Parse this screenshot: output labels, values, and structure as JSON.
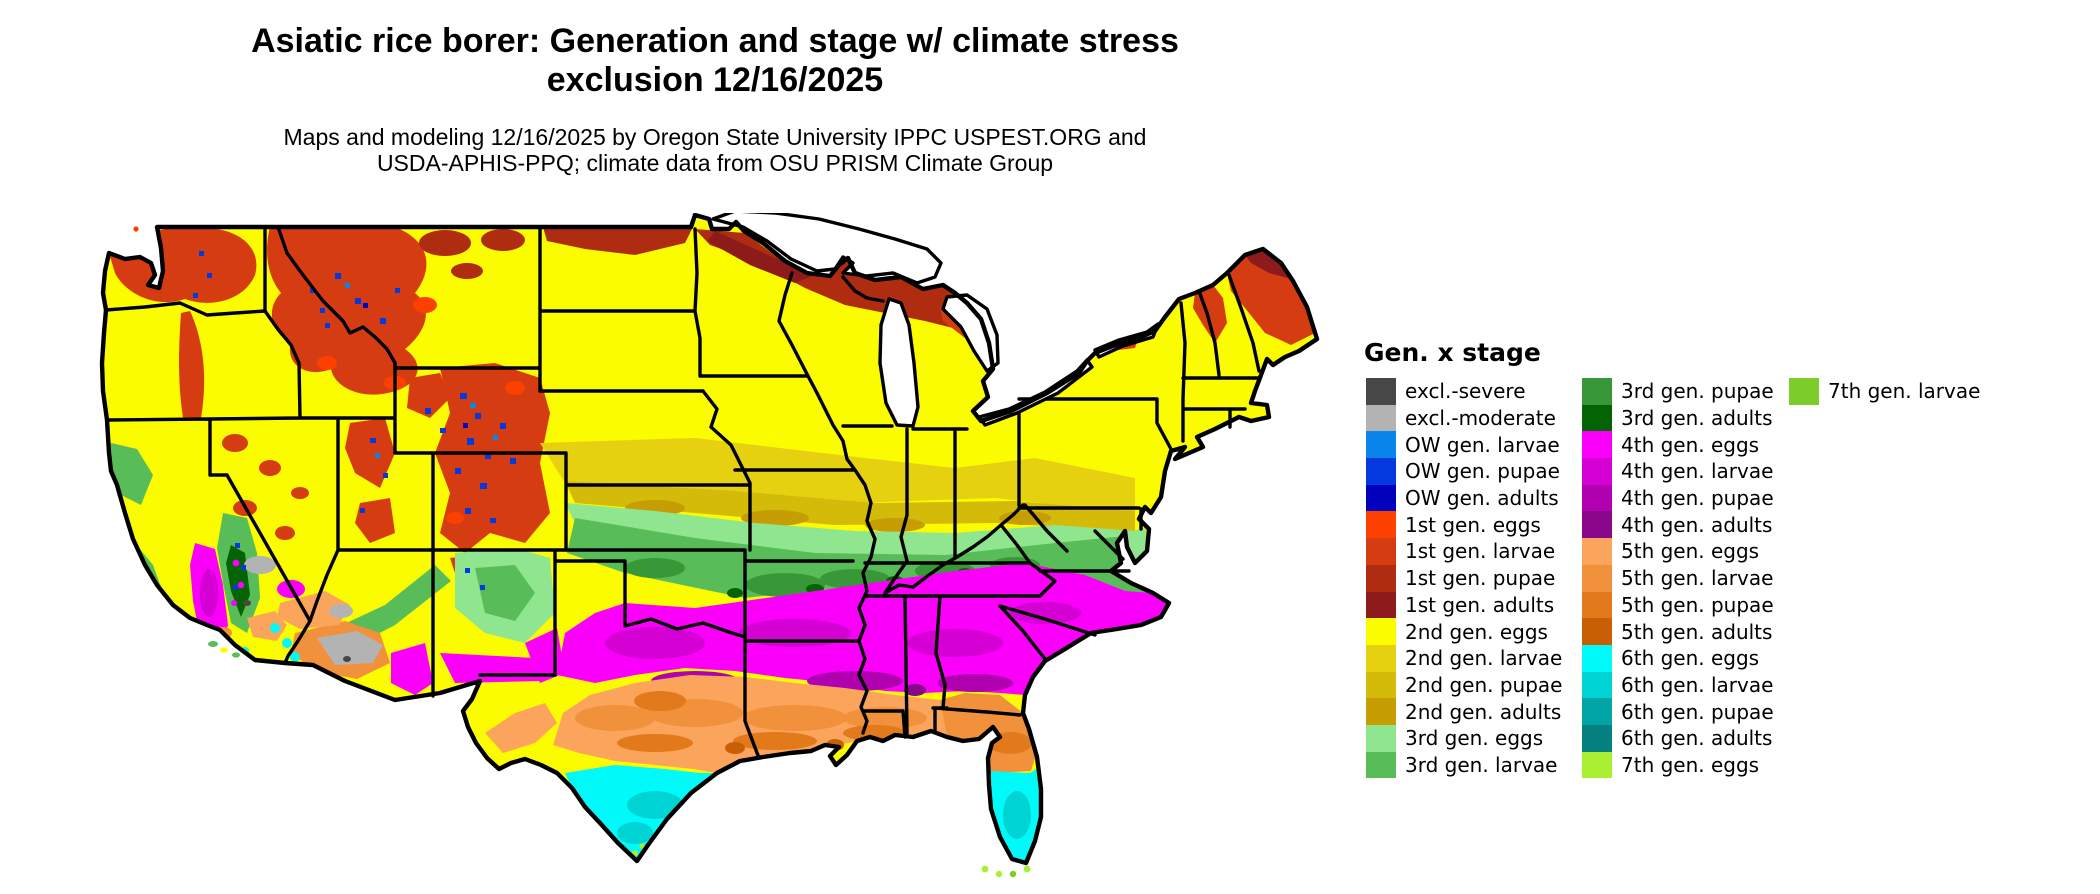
{
  "page": {
    "background": "#FFFFFF"
  },
  "title": {
    "line1": "Asiatic rice borer: Generation and stage w/ climate stress",
    "line2": "exclusion 12/16/2025"
  },
  "subtitle": {
    "line1": "Maps and modeling 12/16/2025 by Oregon State University IPPC USPEST.ORG and",
    "line2": "USDA-APHIS-PPQ; climate data from OSU PRISM Climate Group"
  },
  "legend": {
    "title": "Gen. x stage",
    "columns": [
      [
        {
          "key": "excl_severe",
          "label": "excl.-severe",
          "color": "#474747"
        },
        {
          "key": "excl_moderate",
          "label": "excl.-moderate",
          "color": "#B3B3B3"
        },
        {
          "key": "ow_larvae",
          "label": "OW gen. larvae",
          "color": "#0A85EC"
        },
        {
          "key": "ow_pupae",
          "label": "OW gen. pupae",
          "color": "#0439DF"
        },
        {
          "key": "ow_adults",
          "label": "OW gen. adults",
          "color": "#0101BD"
        },
        {
          "key": "g1_eggs",
          "label": "1st gen. eggs",
          "color": "#FC4000"
        },
        {
          "key": "g1_larvae",
          "label": "1st gen. larvae",
          "color": "#D63C11"
        },
        {
          "key": "g1_pupae",
          "label": "1st gen. pupae",
          "color": "#B02C10"
        },
        {
          "key": "g1_adults",
          "label": "1st gen. adults",
          "color": "#8E1B1B"
        },
        {
          "key": "g2_eggs",
          "label": "2nd gen. eggs",
          "color": "#FCFC00"
        },
        {
          "key": "g2_larvae",
          "label": "2nd gen. larvae",
          "color": "#E6D111"
        },
        {
          "key": "g2_pupae",
          "label": "2nd gen. pupae",
          "color": "#D4BA09"
        },
        {
          "key": "g2_adults",
          "label": "2nd gen. adults",
          "color": "#C79D04"
        },
        {
          "key": "g3_eggs",
          "label": "3rd gen. eggs",
          "color": "#8FE68F"
        },
        {
          "key": "g3_larvae",
          "label": "3rd gen. larvae",
          "color": "#58BC58"
        }
      ],
      [
        {
          "key": "g3_pupae",
          "label": "3rd gen. pupae",
          "color": "#389838"
        },
        {
          "key": "g3_adults",
          "label": "3rd gen. adults",
          "color": "#046404"
        },
        {
          "key": "g4_eggs",
          "label": "4th gen. eggs",
          "color": "#FA00FA"
        },
        {
          "key": "g4_larvae",
          "label": "4th gen. larvae",
          "color": "#D400D4"
        },
        {
          "key": "g4_pupae",
          "label": "4th gen. pupae",
          "color": "#B000B0"
        },
        {
          "key": "g4_adults",
          "label": "4th gen. adults",
          "color": "#8A068A"
        },
        {
          "key": "g5_eggs",
          "label": "5th gen. eggs",
          "color": "#FBA55C"
        },
        {
          "key": "g5_larvae",
          "label": "5th gen. larvae",
          "color": "#F1913B"
        },
        {
          "key": "g5_pupae",
          "label": "5th gen. pupae",
          "color": "#E27A1C"
        },
        {
          "key": "g5_adults",
          "label": "5th gen. adults",
          "color": "#C95F04"
        },
        {
          "key": "g6_eggs",
          "label": "6th gen. eggs",
          "color": "#00FAFA"
        },
        {
          "key": "g6_larvae",
          "label": "6th gen. larvae",
          "color": "#00D3D3"
        },
        {
          "key": "g6_pupae",
          "label": "6th gen. pupae",
          "color": "#01A5A5"
        },
        {
          "key": "g6_adults",
          "label": "6th gen. adults",
          "color": "#058080"
        },
        {
          "key": "g7_eggs",
          "label": "7th gen. eggs",
          "color": "#AAF032"
        }
      ],
      [
        {
          "key": "g7_larvae",
          "label": "7th gen. larvae",
          "color": "#7CCD29"
        }
      ]
    ]
  }
}
